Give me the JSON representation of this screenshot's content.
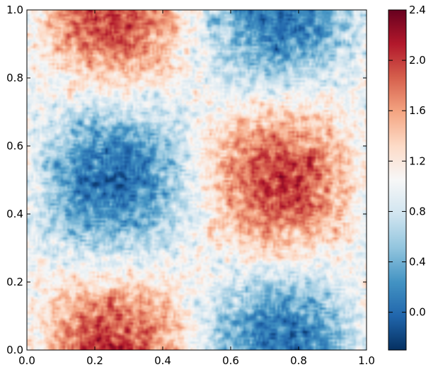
{
  "chart_data": {
    "type": "heatmap",
    "title": "",
    "xlabel": "",
    "ylabel": "",
    "xlim": [
      0.0,
      1.0
    ],
    "ylim": [
      0.0,
      1.0
    ],
    "x_ticks": [
      0.0,
      0.2,
      0.4,
      0.6,
      0.8,
      1.0
    ],
    "y_ticks": [
      0.0,
      0.2,
      0.4,
      0.6,
      0.8,
      1.0
    ],
    "x_tick_labels": [
      "0.0",
      "0.2",
      "0.4",
      "0.6",
      "0.8",
      "1.0"
    ],
    "y_tick_labels": [
      "0.0",
      "0.2",
      "0.4",
      "0.6",
      "0.8",
      "1.0"
    ],
    "colormap": "RdBu_r",
    "colormap_stops": [
      "#053061",
      "#2166ac",
      "#4393c3",
      "#92c5de",
      "#d1e5f0",
      "#f7f7f7",
      "#fddbc7",
      "#f4a582",
      "#d6604d",
      "#b2182b",
      "#67001f"
    ],
    "colorbar": {
      "range": [
        -0.3,
        2.4
      ],
      "ticks": [
        0.0,
        0.4,
        0.8,
        1.2,
        1.6,
        2.0,
        2.4
      ],
      "tick_labels": [
        "0.0",
        "0.4",
        "0.8",
        "1.2",
        "1.6",
        "2.0",
        "2.4"
      ]
    },
    "grid": false,
    "field": {
      "description_of_pattern": "smooth periodic field with noise",
      "baseline": 1.0,
      "amplitude": 1.0,
      "noise_std": 0.25,
      "peaks": [
        {
          "x": 0.25,
          "y": 0.0,
          "value": 2.0
        },
        {
          "x": 0.25,
          "y": 1.0,
          "value": 2.0
        },
        {
          "x": 0.75,
          "y": 0.5,
          "value": 2.0
        }
      ],
      "troughs": [
        {
          "x": 0.25,
          "y": 0.5,
          "value": 0.0
        },
        {
          "x": 0.75,
          "y": 0.0,
          "value": 0.0
        },
        {
          "x": 0.75,
          "y": 1.0,
          "value": 0.0
        }
      ],
      "grid_resolution": 160
    }
  }
}
